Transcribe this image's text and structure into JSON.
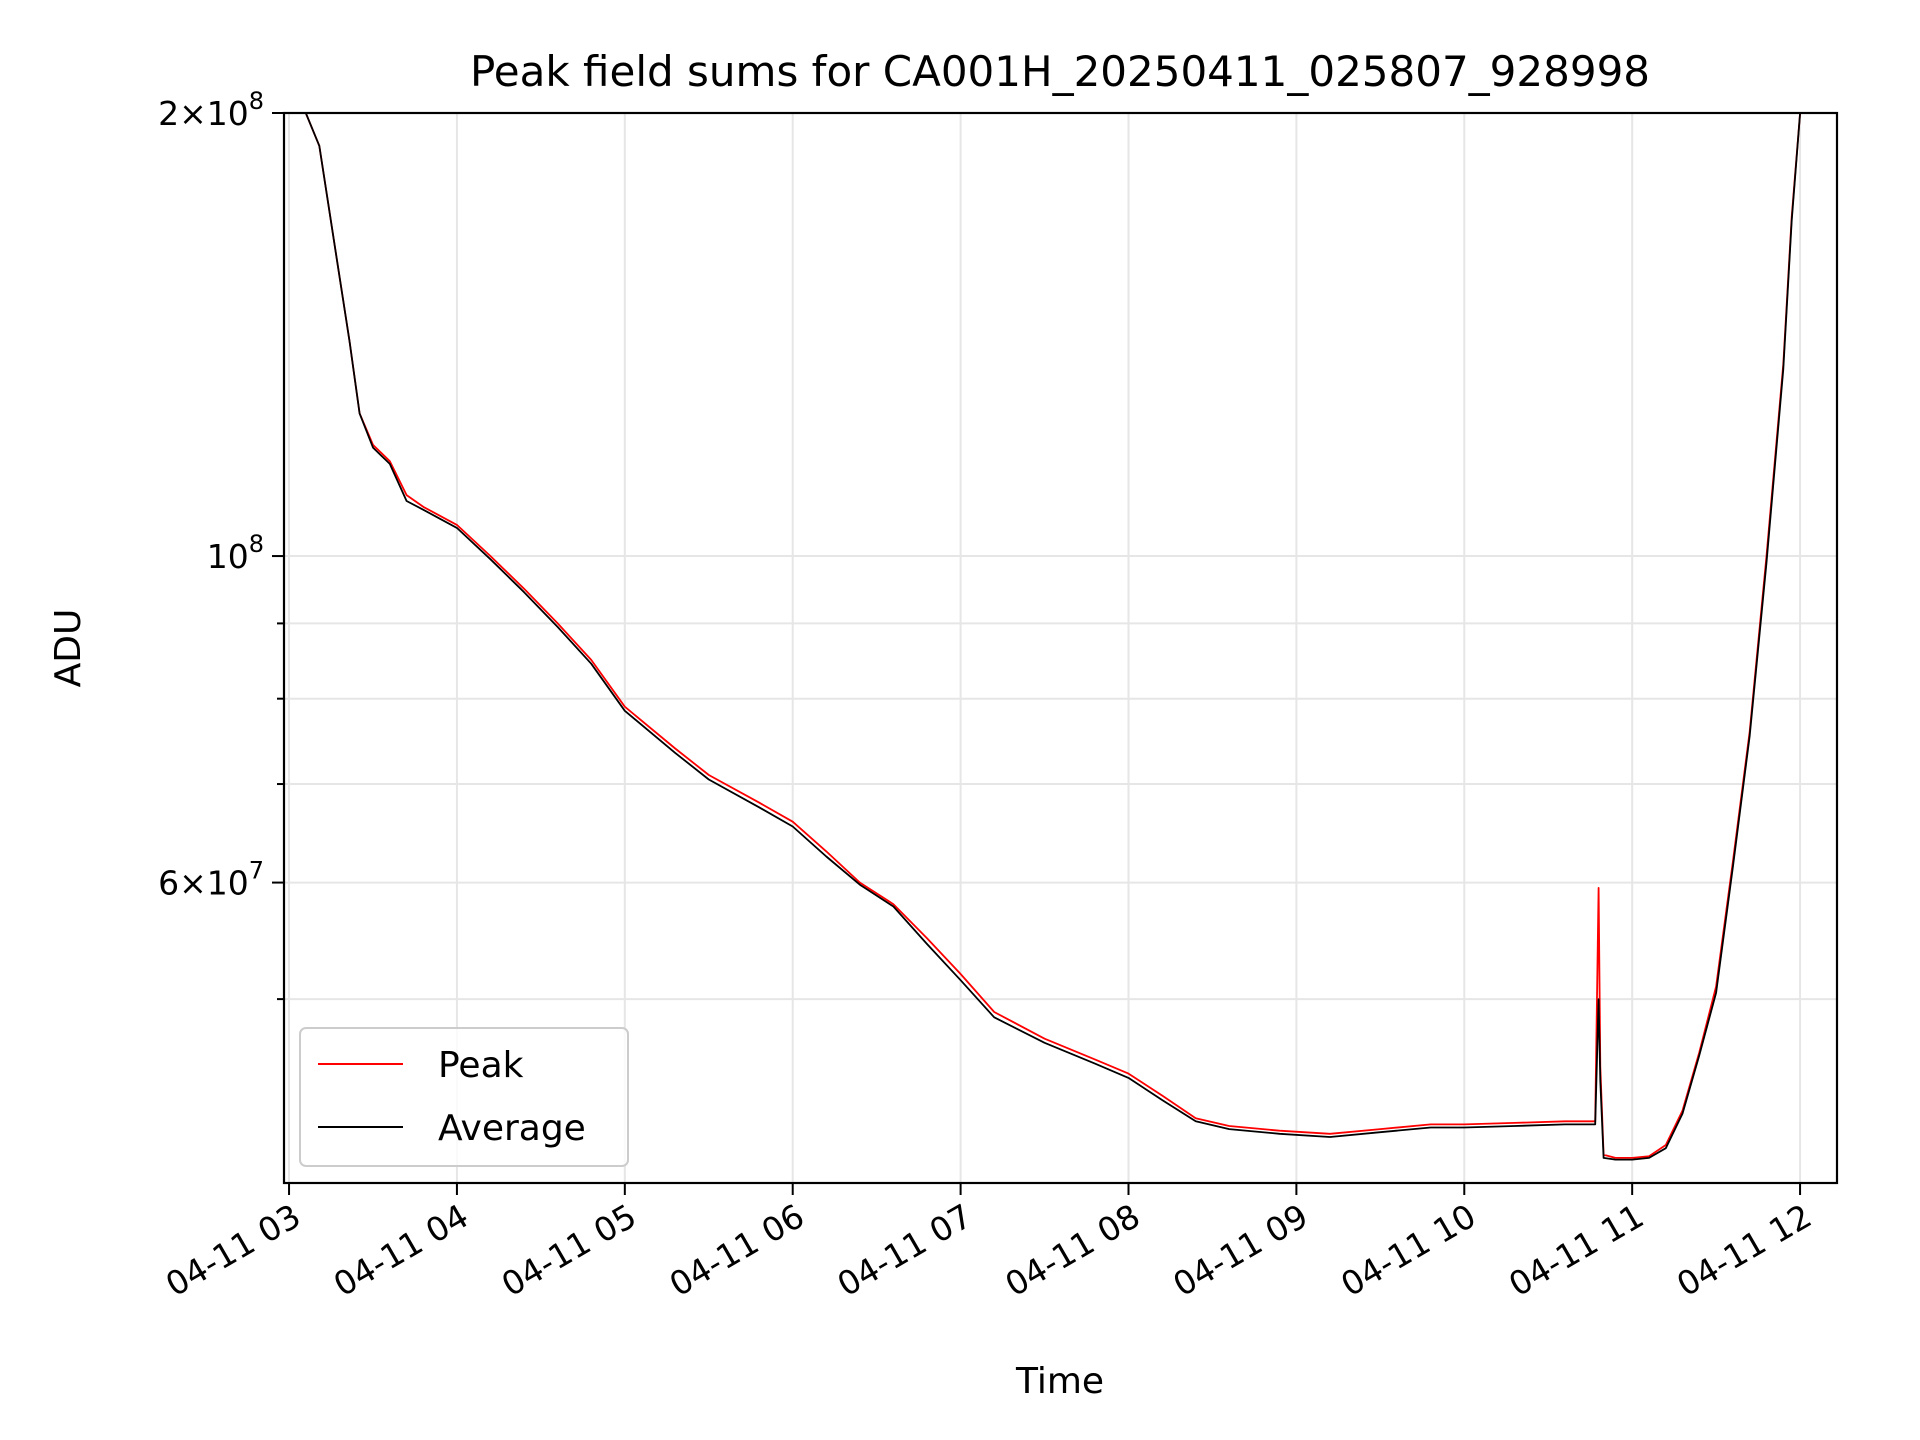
{
  "chart_data": {
    "type": "line",
    "title": "Peak field sums for CA001H_20250411_025807_928998",
    "xlabel": "Time",
    "ylabel": "ADU",
    "y_scale": "log",
    "ylim": [
      37500000,
      200000000
    ],
    "xlim_hours": [
      2.97,
      12.22
    ],
    "grid": true,
    "legend": "lower-left",
    "x_ticks": [
      {
        "hour": 3,
        "label": "04-11 03"
      },
      {
        "hour": 4,
        "label": "04-11 04"
      },
      {
        "hour": 5,
        "label": "04-11 05"
      },
      {
        "hour": 6,
        "label": "04-11 06"
      },
      {
        "hour": 7,
        "label": "04-11 07"
      },
      {
        "hour": 8,
        "label": "04-11 08"
      },
      {
        "hour": 9,
        "label": "04-11 09"
      },
      {
        "hour": 10,
        "label": "04-11 10"
      },
      {
        "hour": 11,
        "label": "04-11 11"
      },
      {
        "hour": 12,
        "label": "04-11 12"
      }
    ],
    "y_major_ticks": [
      {
        "value": 200000000,
        "mantissa": "2",
        "exponent": "8"
      },
      {
        "value": 100000000,
        "mantissa": "",
        "exponent": "8"
      },
      {
        "value": 60000000,
        "mantissa": "6",
        "exponent": "7"
      }
    ],
    "y_minor_ticks": [
      50000000,
      70000000,
      80000000,
      90000000
    ],
    "times_mantissa_sign": "×",
    "series": [
      {
        "name": "Peak",
        "color": "#ff0000",
        "x_hours": [
          3.1,
          3.18,
          3.3,
          3.36,
          3.42,
          3.5,
          3.6,
          3.7,
          3.8,
          4.0,
          4.2,
          4.4,
          4.6,
          4.8,
          5.0,
          5.3,
          5.5,
          5.8,
          6.0,
          6.2,
          6.4,
          6.6,
          6.8,
          7.0,
          7.2,
          7.5,
          7.8,
          8.0,
          8.2,
          8.4,
          8.6,
          8.9,
          9.2,
          9.5,
          9.8,
          10.0,
          10.3,
          10.6,
          10.78,
          10.8,
          10.81,
          10.83,
          10.9,
          11.0,
          11.1,
          11.2,
          11.3,
          11.4,
          11.5,
          11.6,
          11.7,
          11.8,
          11.9,
          11.95,
          12.0
        ],
        "y": [
          200000000,
          190000000,
          155000000,
          140000000,
          125000000,
          119000000,
          116000000,
          110000000,
          108000000,
          105000000,
          100000000,
          95000000,
          90000000,
          85000000,
          79000000,
          74000000,
          71000000,
          68000000,
          66000000,
          63000000,
          60000000,
          58000000,
          55000000,
          52000000,
          49000000,
          47000000,
          45500000,
          44500000,
          43000000,
          41500000,
          41000000,
          40700000,
          40500000,
          40800000,
          41100000,
          41100000,
          41200000,
          41300000,
          41300000,
          59500000,
          45000000,
          39200000,
          39000000,
          39000000,
          39100000,
          39800000,
          42000000,
          46000000,
          51000000,
          62000000,
          76000000,
          100000000,
          135000000,
          170000000,
          200000000
        ]
      },
      {
        "name": "Average",
        "color": "#000000",
        "x_hours": [
          3.1,
          3.18,
          3.3,
          3.36,
          3.42,
          3.5,
          3.6,
          3.7,
          3.8,
          4.0,
          4.2,
          4.4,
          4.6,
          4.8,
          5.0,
          5.3,
          5.5,
          5.8,
          6.0,
          6.2,
          6.4,
          6.6,
          6.8,
          7.0,
          7.2,
          7.5,
          7.8,
          8.0,
          8.2,
          8.4,
          8.6,
          8.9,
          9.2,
          9.5,
          9.8,
          10.0,
          10.3,
          10.6,
          10.78,
          10.8,
          10.81,
          10.83,
          10.9,
          11.0,
          11.1,
          11.2,
          11.3,
          11.4,
          11.5,
          11.6,
          11.7,
          11.8,
          11.9,
          11.95,
          12.0
        ],
        "y": [
          200000000,
          190000000,
          155000000,
          140000000,
          125000000,
          118500000,
          115500000,
          109000000,
          107500000,
          104500000,
          99500000,
          94500000,
          89500000,
          84500000,
          78500000,
          73500000,
          70500000,
          67500000,
          65500000,
          62500000,
          59800000,
          57800000,
          54500000,
          51500000,
          48600000,
          46700000,
          45200000,
          44200000,
          42700000,
          41300000,
          40800000,
          40500000,
          40300000,
          40600000,
          40900000,
          40900000,
          41000000,
          41100000,
          41100000,
          50000000,
          44000000,
          39000000,
          38900000,
          38900000,
          39000000,
          39600000,
          41800000,
          45800000,
          50500000,
          61500000,
          75500000,
          99000000,
          134000000,
          169000000,
          200000000
        ]
      }
    ]
  }
}
